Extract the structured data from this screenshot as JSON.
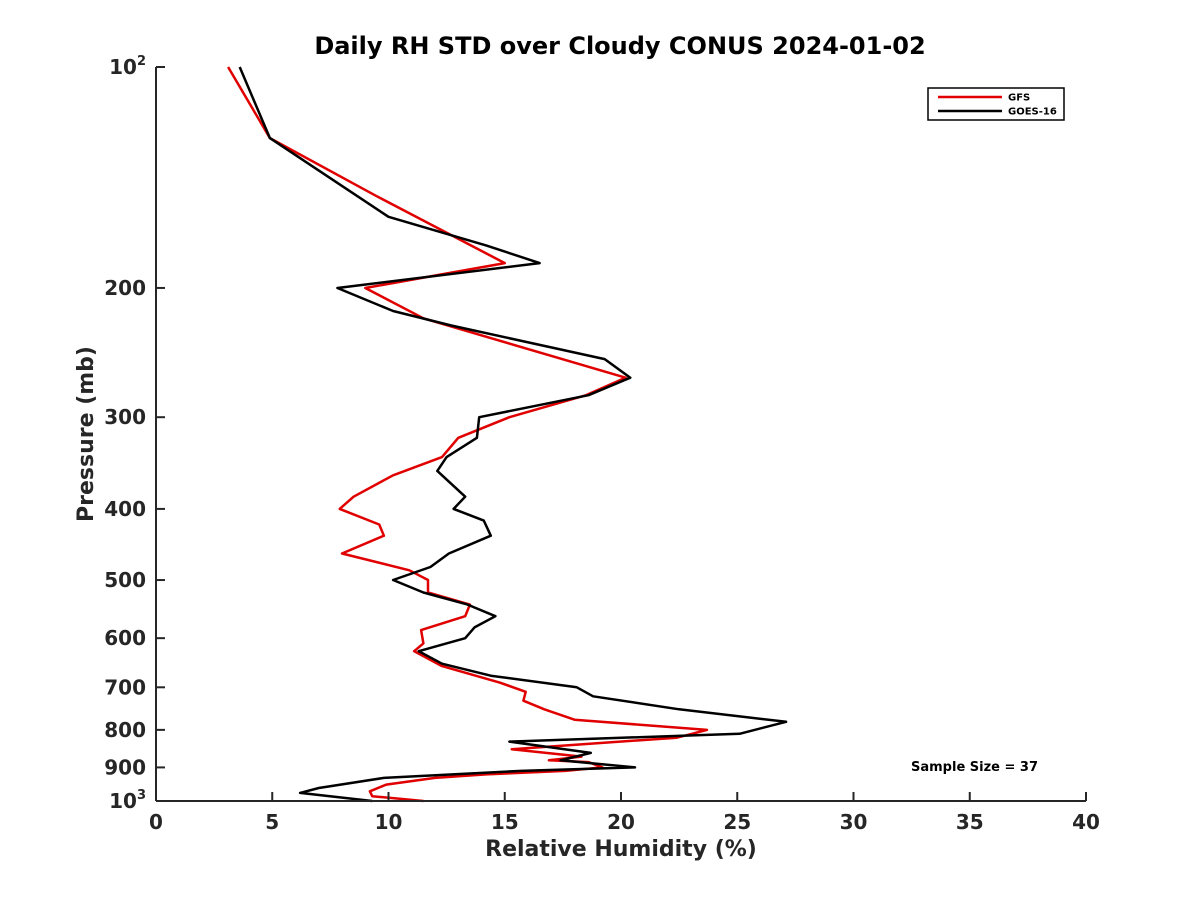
{
  "chart_data": {
    "type": "line",
    "title": "Daily RH STD over Cloudy CONUS 2024-01-02",
    "xlabel": "Relative Humidity (%)",
    "ylabel": "Pressure (mb)",
    "xlim": [
      0,
      40
    ],
    "ylim": [
      100,
      1000
    ],
    "y_scale": "log",
    "y_reversed": true,
    "x_ticks": [
      "0",
      "5",
      "10",
      "15",
      "20",
      "25",
      "30",
      "35",
      "40"
    ],
    "y_ticks": [
      {
        "value": 100,
        "label": "10",
        "sup": "2"
      },
      {
        "value": 200,
        "label": "200"
      },
      {
        "value": 300,
        "label": "300"
      },
      {
        "value": 400,
        "label": "400"
      },
      {
        "value": 500,
        "label": "500"
      },
      {
        "value": 600,
        "label": "600"
      },
      {
        "value": 700,
        "label": "700"
      },
      {
        "value": 800,
        "label": "800"
      },
      {
        "value": 900,
        "label": "900"
      },
      {
        "value": 1000,
        "label": "10",
        "sup": "3"
      }
    ],
    "grid": false,
    "legend_position": "top-right",
    "annotation": "Sample Size = 37",
    "series": [
      {
        "name": "GFS",
        "color": "#e00000",
        "points": [
          [
            3.1,
            100
          ],
          [
            4.9,
            125
          ],
          [
            9.5,
            150
          ],
          [
            15.0,
            185
          ],
          [
            9.0,
            200
          ],
          [
            11.5,
            220
          ],
          [
            20.2,
            265
          ],
          [
            18.5,
            280
          ],
          [
            15.2,
            300
          ],
          [
            13.0,
            320
          ],
          [
            12.3,
            340
          ],
          [
            10.2,
            360
          ],
          [
            8.5,
            385
          ],
          [
            7.9,
            400
          ],
          [
            9.6,
            420
          ],
          [
            9.8,
            435
          ],
          [
            8.0,
            460
          ],
          [
            10.9,
            485
          ],
          [
            11.7,
            500
          ],
          [
            11.7,
            520
          ],
          [
            13.5,
            540
          ],
          [
            13.3,
            560
          ],
          [
            11.4,
            585
          ],
          [
            11.5,
            610
          ],
          [
            11.1,
            625
          ],
          [
            12.3,
            655
          ],
          [
            14.8,
            690
          ],
          [
            15.9,
            710
          ],
          [
            15.8,
            730
          ],
          [
            16.7,
            750
          ],
          [
            18.0,
            775
          ],
          [
            23.7,
            800
          ],
          [
            22.4,
            820
          ],
          [
            15.3,
            850
          ],
          [
            18.3,
            870
          ],
          [
            16.9,
            880
          ],
          [
            18.6,
            885
          ],
          [
            19.2,
            900
          ],
          [
            17.6,
            910
          ],
          [
            14.2,
            920
          ],
          [
            12.0,
            930
          ],
          [
            9.9,
            950
          ],
          [
            9.2,
            970
          ],
          [
            9.3,
            985
          ],
          [
            11.5,
            1000
          ]
        ]
      },
      {
        "name": "GOES-16",
        "color": "#000000",
        "points": [
          [
            3.6,
            100
          ],
          [
            4.9,
            125
          ],
          [
            10.0,
            160
          ],
          [
            14.2,
            175
          ],
          [
            16.5,
            185
          ],
          [
            7.8,
            200
          ],
          [
            10.2,
            215
          ],
          [
            12.7,
            225
          ],
          [
            19.3,
            250
          ],
          [
            20.4,
            265
          ],
          [
            18.6,
            280
          ],
          [
            13.9,
            300
          ],
          [
            13.8,
            320
          ],
          [
            12.5,
            340
          ],
          [
            12.1,
            355
          ],
          [
            13.3,
            385
          ],
          [
            12.8,
            400
          ],
          [
            14.1,
            415
          ],
          [
            14.4,
            435
          ],
          [
            12.6,
            460
          ],
          [
            11.8,
            480
          ],
          [
            10.2,
            500
          ],
          [
            11.5,
            520
          ],
          [
            13.4,
            540
          ],
          [
            14.6,
            560
          ],
          [
            13.7,
            580
          ],
          [
            13.3,
            600
          ],
          [
            11.3,
            625
          ],
          [
            12.3,
            650
          ],
          [
            14.4,
            675
          ],
          [
            18.1,
            700
          ],
          [
            18.8,
            720
          ],
          [
            22.5,
            750
          ],
          [
            27.1,
            780
          ],
          [
            25.1,
            810
          ],
          [
            15.2,
            830
          ],
          [
            18.7,
            860
          ],
          [
            17.4,
            880
          ],
          [
            20.6,
            900
          ],
          [
            15.7,
            910
          ],
          [
            9.8,
            930
          ],
          [
            7.0,
            960
          ],
          [
            6.2,
            975
          ],
          [
            9.3,
            1000
          ]
        ]
      }
    ]
  }
}
